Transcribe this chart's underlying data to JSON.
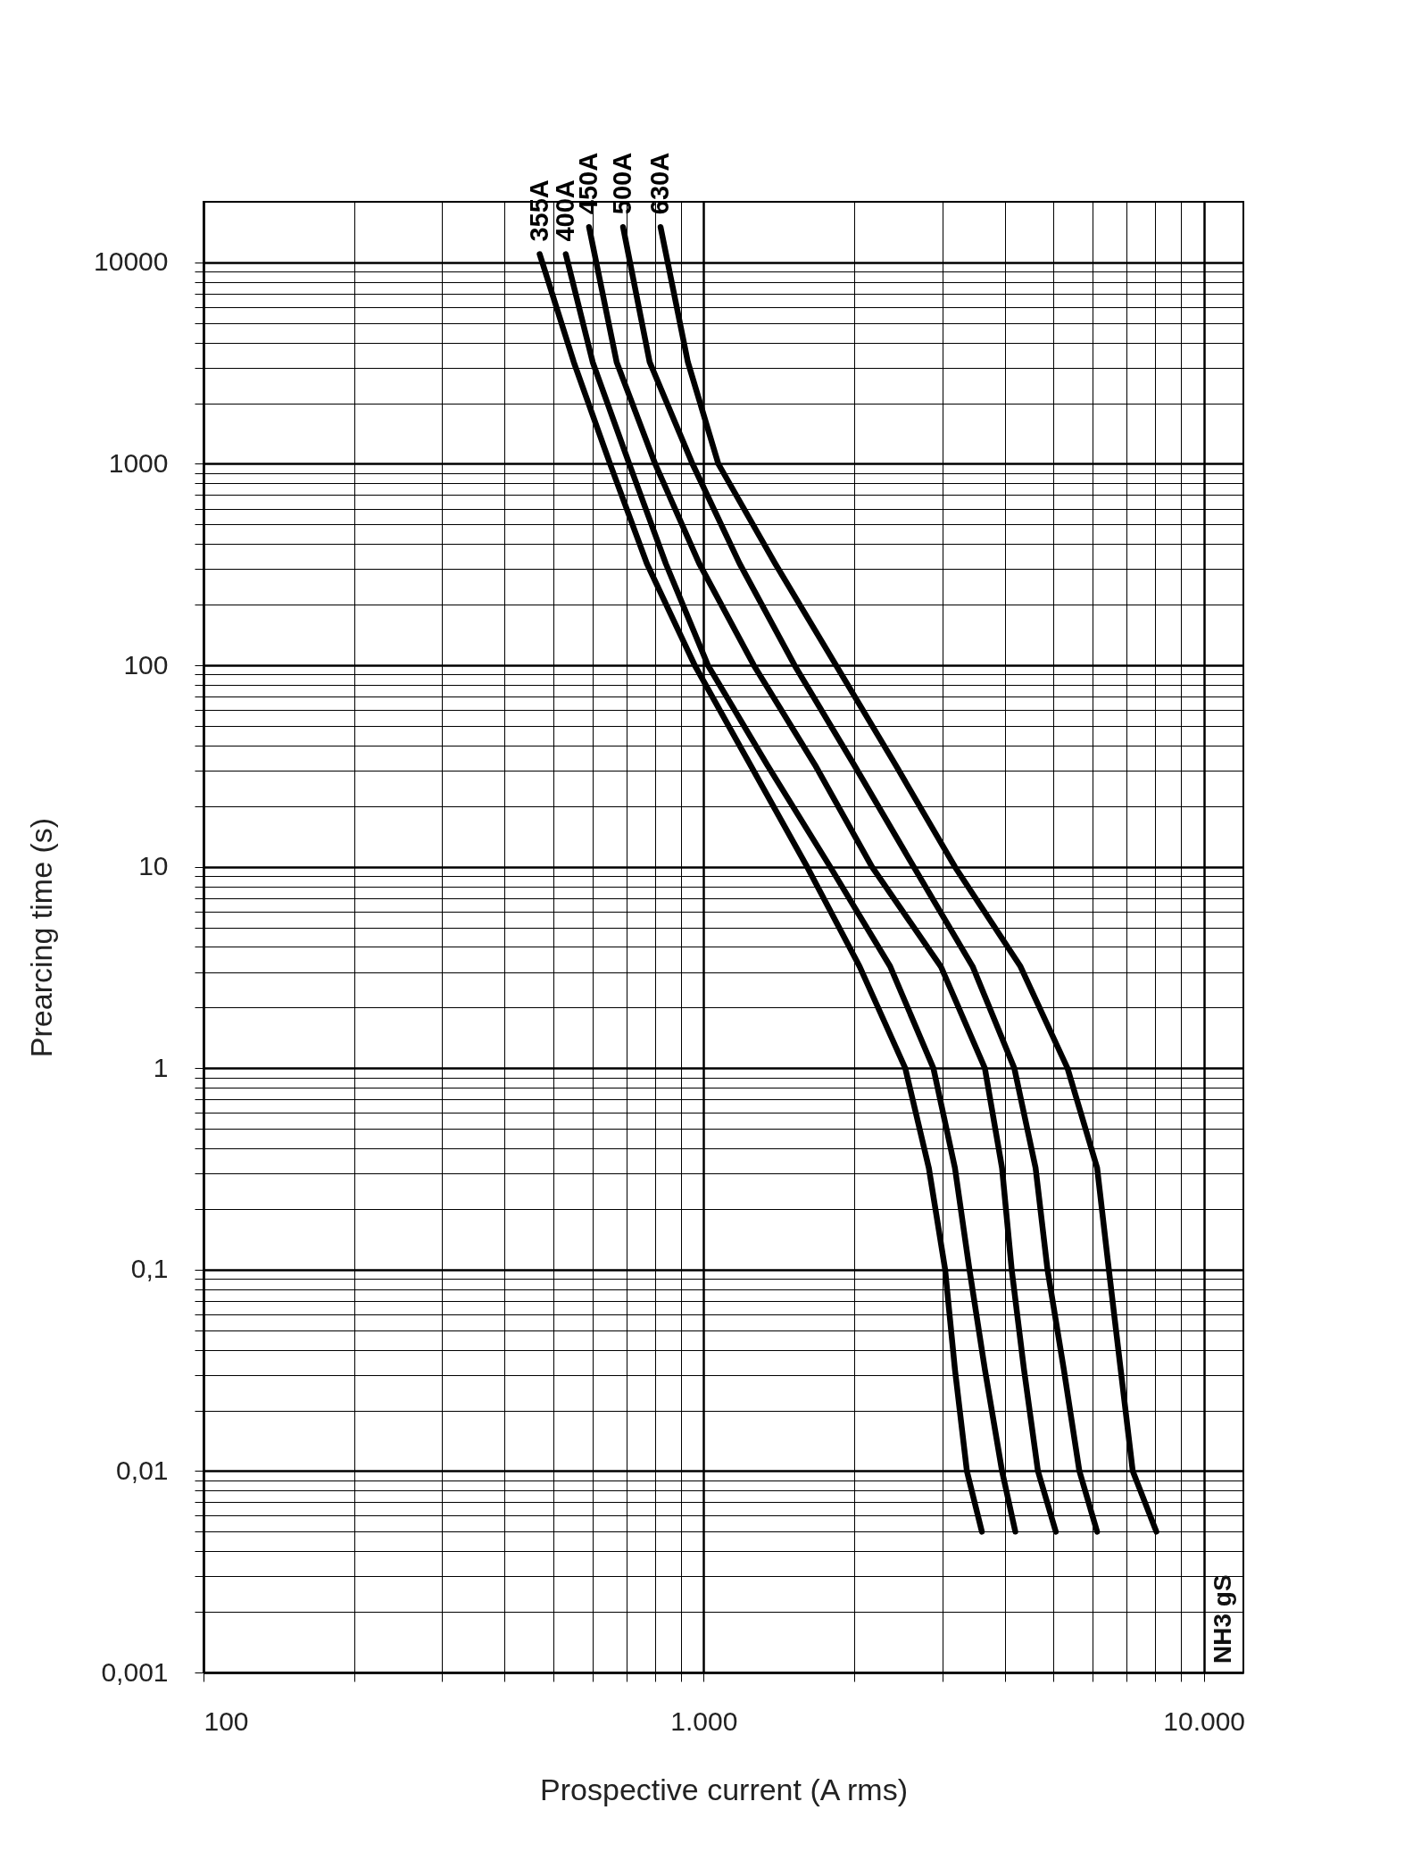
{
  "chart_data": {
    "type": "line",
    "xlabel": "Prospective current (A rms)",
    "ylabel": "Prearcing time (s)",
    "log": "xy",
    "grid": true,
    "legend": false,
    "marker": "none",
    "line_style": "solid",
    "xlim": [
      100,
      12000
    ],
    "ylim": [
      0.001,
      20000
    ],
    "xticks": [
      {
        "value": 100,
        "label": "100"
      },
      {
        "value": 200,
        "label": null
      },
      {
        "value": 300,
        "label": null
      },
      {
        "value": 400,
        "label": null
      },
      {
        "value": 500,
        "label": null
      },
      {
        "value": 600,
        "label": null
      },
      {
        "value": 700,
        "label": null
      },
      {
        "value": 800,
        "label": null
      },
      {
        "value": 900,
        "label": null
      },
      {
        "value": 1000,
        "label": "1.000"
      },
      {
        "value": 2000,
        "label": null
      },
      {
        "value": 3000,
        "label": null
      },
      {
        "value": 4000,
        "label": null
      },
      {
        "value": 5000,
        "label": null
      },
      {
        "value": 6000,
        "label": null
      },
      {
        "value": 7000,
        "label": null
      },
      {
        "value": 8000,
        "label": null
      },
      {
        "value": 9000,
        "label": null
      },
      {
        "value": 10000,
        "label": "10.000"
      }
    ],
    "yticks": [
      {
        "value": 0.001,
        "label": "0,001"
      },
      {
        "value": 0.002,
        "label": null
      },
      {
        "value": 0.003,
        "label": null
      },
      {
        "value": 0.004,
        "label": null
      },
      {
        "value": 0.005,
        "label": null
      },
      {
        "value": 0.006,
        "label": null
      },
      {
        "value": 0.007,
        "label": null
      },
      {
        "value": 0.008,
        "label": null
      },
      {
        "value": 0.009,
        "label": null
      },
      {
        "value": 0.01,
        "label": "0,01"
      },
      {
        "value": 0.02,
        "label": null
      },
      {
        "value": 0.03,
        "label": null
      },
      {
        "value": 0.04,
        "label": null
      },
      {
        "value": 0.05,
        "label": null
      },
      {
        "value": 0.06,
        "label": null
      },
      {
        "value": 0.07,
        "label": null
      },
      {
        "value": 0.08,
        "label": null
      },
      {
        "value": 0.09,
        "label": null
      },
      {
        "value": 0.1,
        "label": "0,1"
      },
      {
        "value": 0.2,
        "label": null
      },
      {
        "value": 0.3,
        "label": null
      },
      {
        "value": 0.4,
        "label": null
      },
      {
        "value": 0.5,
        "label": null
      },
      {
        "value": 0.6,
        "label": null
      },
      {
        "value": 0.7,
        "label": null
      },
      {
        "value": 0.8,
        "label": null
      },
      {
        "value": 0.9,
        "label": null
      },
      1,
      {
        "value": 2,
        "label": null
      },
      {
        "value": 3,
        "label": null
      },
      {
        "value": 4,
        "label": null
      },
      {
        "value": 5,
        "label": null
      },
      {
        "value": 6,
        "label": null
      },
      {
        "value": 7,
        "label": null
      },
      {
        "value": 8,
        "label": null
      },
      {
        "value": 9,
        "label": null
      },
      10,
      {
        "value": 20,
        "label": null
      },
      {
        "value": 30,
        "label": null
      },
      {
        "value": 40,
        "label": null
      },
      {
        "value": 50,
        "label": null
      },
      {
        "value": 60,
        "label": null
      },
      {
        "value": 70,
        "label": null
      },
      {
        "value": 80,
        "label": null
      },
      {
        "value": 90,
        "label": null
      },
      100,
      {
        "value": 200,
        "label": null
      },
      {
        "value": 300,
        "label": null
      },
      {
        "value": 400,
        "label": null
      },
      {
        "value": 500,
        "label": null
      },
      {
        "value": 600,
        "label": null
      },
      {
        "value": 700,
        "label": null
      },
      {
        "value": 800,
        "label": null
      },
      {
        "value": 900,
        "label": null
      },
      1000,
      {
        "value": 2000,
        "label": null
      },
      {
        "value": 3000,
        "label": null
      },
      {
        "value": 4000,
        "label": null
      },
      {
        "value": 5000,
        "label": null
      },
      {
        "value": 6000,
        "label": null
      },
      {
        "value": 7000,
        "label": null
      },
      {
        "value": 8000,
        "label": null
      },
      {
        "value": 9000,
        "label": null
      },
      10000
    ],
    "annotations": [
      "NH3 gS"
    ],
    "series": [
      {
        "name": "355A",
        "color": "#000000",
        "x": [
          470,
          550,
          650,
          770,
          960,
          1240,
          1610,
          2050,
          2530,
          2820,
          3040,
          3180,
          3360,
          3600
        ],
        "values": [
          11000,
          3200,
          1000,
          320,
          100,
          32,
          10,
          3.2,
          1,
          0.32,
          0.1,
          0.032,
          0.01,
          0.005
        ]
      },
      {
        "name": "400A",
        "color": "#000000",
        "x": [
          530,
          600,
          710,
          840,
          1020,
          1340,
          1790,
          2360,
          2880,
          3180,
          3400,
          3650,
          3950,
          4200
        ],
        "values": [
          11000,
          3200,
          1000,
          320,
          100,
          32,
          10,
          3.2,
          1,
          0.32,
          0.1,
          0.032,
          0.01,
          0.005
        ]
      },
      {
        "name": "450A",
        "color": "#000000",
        "x": [
          590,
          670,
          800,
          980,
          1260,
          1670,
          2170,
          2980,
          3650,
          3950,
          4130,
          4370,
          4660,
          5060
        ],
        "values": [
          15000,
          3200,
          1000,
          320,
          100,
          32,
          10,
          3.2,
          1,
          0.32,
          0.1,
          0.032,
          0.01,
          0.005
        ]
      },
      {
        "name": "500A",
        "color": "#000000",
        "x": [
          690,
          780,
          950,
          1180,
          1520,
          2000,
          2630,
          3450,
          4180,
          4610,
          4870,
          5250,
          5640,
          6120
        ],
        "values": [
          15000,
          3200,
          1000,
          320,
          100,
          32,
          10,
          3.2,
          1,
          0.32,
          0.1,
          0.032,
          0.01,
          0.005
        ]
      },
      {
        "name": "630A",
        "color": "#000000",
        "x": [
          820,
          930,
          1070,
          1390,
          1840,
          2420,
          3180,
          4300,
          5340,
          6120,
          6460,
          6820,
          7210,
          8040
        ],
        "values": [
          15000,
          3200,
          1000,
          320,
          100,
          32,
          10,
          3.2,
          1,
          0.32,
          0.1,
          0.032,
          0.01,
          0.005
        ]
      }
    ]
  }
}
